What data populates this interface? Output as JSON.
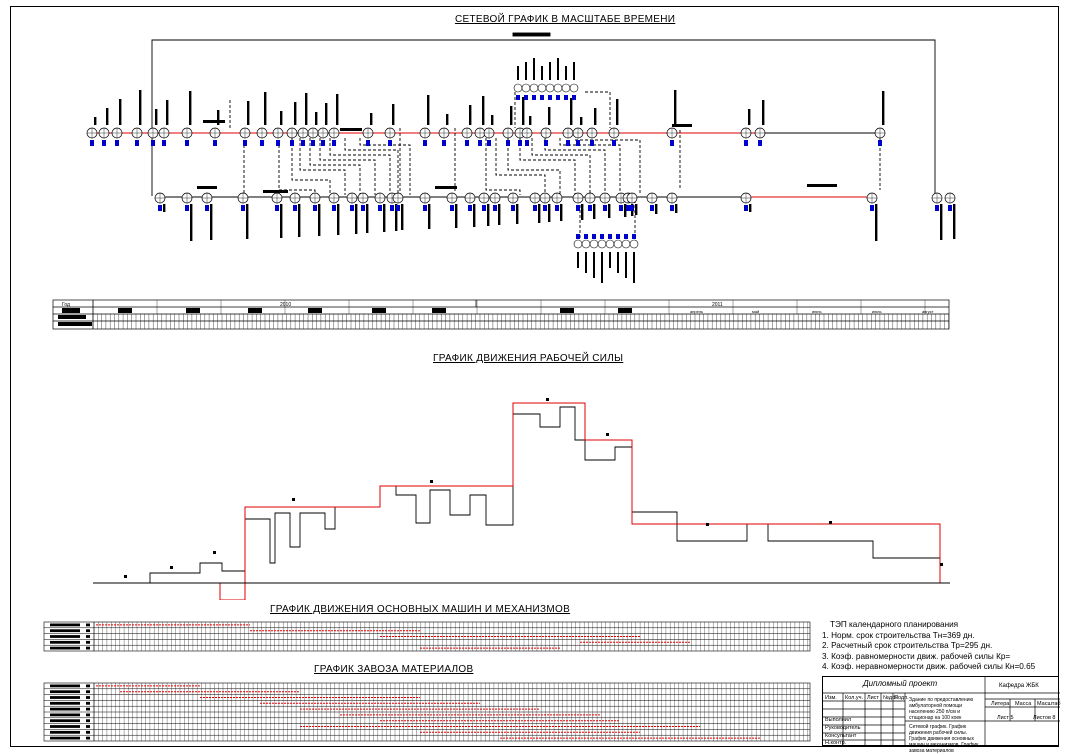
{
  "titles": {
    "network": "СЕТЕВОЙ ГРАФИК В МАСШТАБЕ ВРЕМЕНИ",
    "workforce": "ГРАФИК ДВИЖЕНИЯ РАБОЧЕЙ СИЛЫ",
    "machines": "ГРАФИК ДВИЖЕНИЯ ОСНОВНЫХ МАШИН И МЕХАНИЗМОВ",
    "materials": "ГРАФИК ЗАВОЗА МАТЕРИАЛОВ"
  },
  "calendar": {
    "year_label": "Год",
    "years": [
      "2010",
      "2011"
    ],
    "months_2011": [
      "апрель",
      "май",
      "июнь",
      "июль",
      "август"
    ]
  },
  "tep": {
    "heading": "ТЭП календарного планирования",
    "items": [
      "1. Норм. срок строительства Тн=369 дн.",
      "2. Расчетный срок строительства Тр=295 дн.",
      "3. Коэф. равномерности движ. рабочей силы Кр=",
      "4. Коэф. неравномерности движ. рабочей силы Кн=0.65"
    ]
  },
  "stamp": {
    "project": "Дипломный проект",
    "department": "Кафедра ЖБК",
    "cols": [
      "Изм.",
      "Кол.уч.",
      "Лист",
      "№док",
      "Подп.",
      "Дата"
    ],
    "stage_headers": [
      "Литера",
      "Масса",
      "Масштаб"
    ],
    "sheet_label": "Лист 5",
    "sheets_label": "Листов 8",
    "roles": [
      "Выполнил",
      "Руководитель",
      "Консультант",
      "Н.контр.",
      "Зав.каф."
    ],
    "description": "Здание по предоставлению амбулаторной помощи населению 250 п/см и стационар на 100 коек",
    "sheet_title": "Сетевой график. График движения рабочей силы. График движения основных машин и механизмов. График завоза материалов"
  },
  "colors": {
    "line": "#000000",
    "critical": "#e00000",
    "nodes": "#0000cc"
  },
  "network": {
    "node_labels_top": [
      "1-1",
      "1-2",
      "1-3",
      "2-1",
      "3-1",
      "4-1",
      "5-1",
      "6-1",
      "7-1",
      "8-1",
      "9-1",
      "10-1",
      "11-1",
      "12-1",
      "13-1",
      "14-1",
      "15-1",
      "16-1"
    ],
    "node_labels_bottom": [
      "17-1",
      "18-1",
      "19-1",
      "20-1",
      "21-1",
      "22-1",
      "23-1",
      "24-1",
      "25-1",
      "26-1",
      "27-1",
      "28-1",
      "29-1",
      "30-1",
      "31-1",
      "32-1",
      "33-1",
      "34-1"
    ]
  },
  "workforce_profile": {
    "red": [
      [
        93,
        0
      ],
      [
        220,
        0
      ],
      [
        220,
        17
      ],
      [
        245,
        17
      ],
      [
        245,
        0
      ],
      [
        245,
        -76
      ],
      [
        380,
        -76
      ],
      [
        380,
        -97
      ],
      [
        513,
        -97
      ],
      [
        513,
        -180
      ],
      [
        585,
        -180
      ],
      [
        585,
        -143
      ],
      [
        632,
        -143
      ],
      [
        632,
        -59
      ],
      [
        940,
        -59
      ],
      [
        940,
        0
      ]
    ],
    "black": [
      [
        93,
        0
      ],
      [
        150,
        0
      ],
      [
        150,
        -10
      ],
      [
        200,
        -10
      ],
      [
        200,
        -20
      ],
      [
        222,
        -20
      ],
      [
        222,
        -12
      ],
      [
        245,
        -12
      ],
      [
        245,
        -64
      ],
      [
        270,
        -64
      ],
      [
        270,
        -20
      ],
      [
        275,
        -20
      ],
      [
        275,
        -70
      ],
      [
        290,
        -70
      ],
      [
        290,
        -36
      ],
      [
        300,
        -36
      ],
      [
        300,
        -70
      ],
      [
        325,
        -70
      ],
      [
        325,
        -54
      ],
      [
        335,
        -54
      ],
      [
        335,
        -76
      ],
      [
        380,
        -76
      ],
      [
        380,
        -97
      ],
      [
        396,
        -97
      ],
      [
        396,
        -88
      ],
      [
        416,
        -88
      ],
      [
        416,
        -60
      ],
      [
        430,
        -60
      ],
      [
        430,
        -93
      ],
      [
        450,
        -93
      ],
      [
        450,
        -68
      ],
      [
        470,
        -68
      ],
      [
        470,
        -88
      ],
      [
        486,
        -88
      ],
      [
        486,
        -58
      ],
      [
        513,
        -58
      ],
      [
        513,
        -169
      ],
      [
        540,
        -169
      ],
      [
        540,
        -156
      ],
      [
        560,
        -156
      ],
      [
        560,
        -176
      ],
      [
        575,
        -176
      ],
      [
        575,
        -143
      ],
      [
        585,
        -143
      ],
      [
        585,
        -123
      ],
      [
        615,
        -123
      ],
      [
        615,
        -136
      ],
      [
        632,
        -136
      ],
      [
        632,
        -71
      ],
      [
        677,
        -71
      ],
      [
        677,
        -42
      ],
      [
        747,
        -42
      ],
      [
        747,
        -59
      ],
      [
        768,
        -59
      ],
      [
        768,
        -42
      ],
      [
        873,
        -42
      ],
      [
        873,
        -25
      ],
      [
        940,
        -25
      ],
      [
        940,
        0
      ]
    ]
  }
}
